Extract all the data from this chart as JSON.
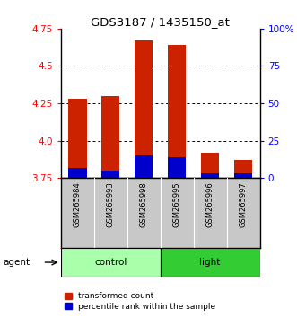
{
  "title": "GDS3187 / 1435150_at",
  "samples": [
    "GSM265984",
    "GSM265993",
    "GSM265998",
    "GSM265995",
    "GSM265996",
    "GSM265997"
  ],
  "transformed_counts": [
    4.28,
    4.3,
    4.67,
    4.64,
    3.92,
    3.87
  ],
  "percentile_ranks": [
    7,
    5,
    15,
    14,
    3,
    3
  ],
  "y_min": 3.75,
  "y_max": 4.75,
  "y_ticks": [
    3.75,
    4.0,
    4.25,
    4.5,
    4.75
  ],
  "y_ticks_right": [
    0,
    25,
    50,
    75,
    100
  ],
  "y_ticks_right_labels": [
    "0",
    "25",
    "50",
    "75",
    "100%"
  ],
  "bar_color": "#CC2200",
  "percentile_color": "#0000CC",
  "bar_width": 0.55,
  "agent_label": "agent",
  "legend_items": [
    "transformed count",
    "percentile rank within the sample"
  ],
  "legend_colors": [
    "#CC2200",
    "#0000CC"
  ],
  "background_sample": "#C8C8C8",
  "control_color": "#AAFFAA",
  "light_color": "#33CC33",
  "n_control": 3,
  "n_light": 3
}
